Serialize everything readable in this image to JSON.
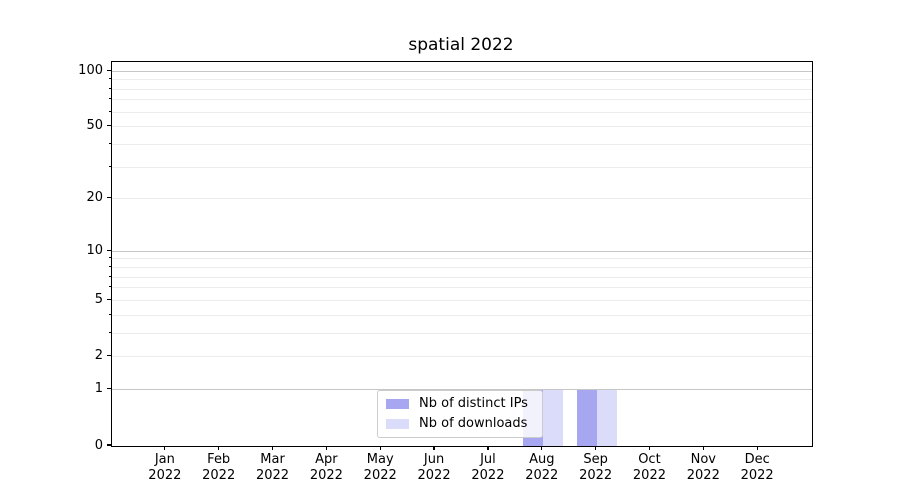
{
  "chart_data": {
    "type": "bar",
    "title": "spatial 2022",
    "categories": [
      "Jan",
      "Feb",
      "Mar",
      "Apr",
      "May",
      "Jun",
      "Jul",
      "Aug",
      "Sep",
      "Oct",
      "Nov",
      "Dec"
    ],
    "category_year": "2022",
    "series": [
      {
        "name": "Nb of distinct IPs",
        "color": "#a7a7f1",
        "values": [
          0,
          0,
          0,
          0,
          0,
          0,
          0,
          1,
          1,
          0,
          0,
          0
        ]
      },
      {
        "name": "Nb of downloads",
        "color": "#dbdbfa",
        "values": [
          0,
          0,
          0,
          0,
          0,
          0,
          0,
          1,
          1,
          0,
          0,
          0
        ]
      }
    ],
    "yscale": "log1p",
    "ylim": [
      0,
      112
    ],
    "yticks": [
      {
        "v": 0,
        "label": "0"
      },
      {
        "v": 1,
        "label": "1"
      },
      {
        "v": 2,
        "label": "2"
      },
      {
        "v": 5,
        "label": "5"
      },
      {
        "v": 10,
        "label": "10"
      },
      {
        "v": 20,
        "label": "20"
      },
      {
        "v": 50,
        "label": "50"
      },
      {
        "v": 100,
        "label": "100"
      }
    ],
    "major_grid": [
      1,
      10,
      100
    ],
    "minor_grid": [
      2,
      3,
      4,
      5,
      6,
      7,
      8,
      9,
      20,
      30,
      40,
      50,
      60,
      70,
      80,
      90
    ],
    "grid_major_color": "#c6c6c6",
    "grid_minor_color": "#ececec",
    "legend_position": "lower center",
    "xlabel": "",
    "ylabel": ""
  }
}
